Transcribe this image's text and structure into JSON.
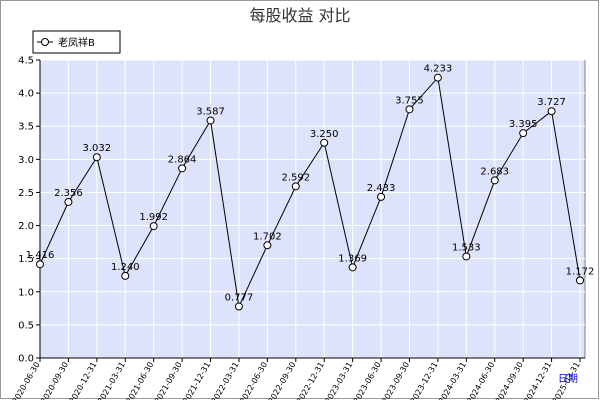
{
  "chart_data": {
    "type": "line",
    "title": "每股收益  对比",
    "x_axis_label": "日期",
    "categories": [
      "2020-06-30",
      "2020-09-30",
      "2020-12-31",
      "2021-03-31",
      "2021-06-30",
      "2021-09-30",
      "2021-12-31",
      "2022-03-31",
      "2022-06-30",
      "2022-09-30",
      "2022-12-31",
      "2023-03-31",
      "2023-06-30",
      "2023-09-30",
      "2023-12-31",
      "2024-03-31",
      "2024-06-30",
      "2024-09-30",
      "2024-12-31",
      "2025-03-31"
    ],
    "series": [
      {
        "name": "老凤祥B",
        "values": [
          1.416,
          2.356,
          3.032,
          1.24,
          1.992,
          2.864,
          3.587,
          0.777,
          1.702,
          2.592,
          3.25,
          1.369,
          2.433,
          3.755,
          4.233,
          1.533,
          2.683,
          3.395,
          3.727,
          1.172
        ],
        "labels": [
          "1.416",
          "2.356",
          "3.032",
          "1.240",
          "1.992",
          "2.864",
          "3.587",
          "0.777",
          "1.702",
          "2.592",
          "3.250",
          "1.369",
          "2.433",
          "3.755",
          "4.233",
          "1.533",
          "2.683",
          "3.395",
          "3.727",
          "1.172"
        ]
      }
    ],
    "y_ticks": [
      "0.0",
      "0.5",
      "1.0",
      "1.5",
      "2.0",
      "2.5",
      "3.0",
      "3.5",
      "4.0",
      "4.5"
    ],
    "ylim": [
      0,
      4.5
    ],
    "grid": true,
    "legend_position": "top-left",
    "colors": {
      "plot_background": "#dde3fb",
      "grid": "#ffffff",
      "line": "#000000",
      "marker_fill": "#ffffff"
    }
  }
}
